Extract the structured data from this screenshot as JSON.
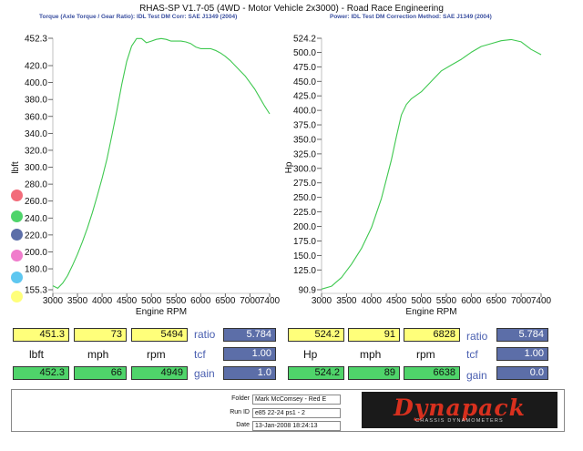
{
  "header": {
    "title": "RHAS-SP V1.7-05   (4WD - Motor Vehicle 2x3000) - Road Race Engineering",
    "left_subtitle": "Torque (Axle Torque / Gear Ratio): IDL Test DM     Corr: SAE J1349 (2004)",
    "right_subtitle": "Power: IDL Test DM     Correction Method: SAE J1349 (2004)"
  },
  "chart_data": [
    {
      "type": "line",
      "xlabel": "Engine RPM",
      "ylabel": "lbft",
      "xlim": [
        3000,
        7400
      ],
      "ylim": [
        155.3,
        452.3
      ],
      "xticks": [
        3000,
        3500,
        4000,
        4500,
        5000,
        5500,
        6000,
        6500,
        7000,
        7400
      ],
      "xtick_labels": [
        "3000",
        "3500",
        "4000",
        "4500",
        "5000",
        "5500",
        "6000",
        "6500",
        "7000",
        "7400"
      ],
      "yticks": [
        155.3,
        180,
        200,
        220,
        240,
        260,
        280,
        300,
        320,
        340,
        360,
        380,
        400,
        420,
        452.3
      ],
      "ytick_labels": [
        "155.3",
        "180.0",
        "200.0",
        "220.0",
        "240.0",
        "260.0",
        "280.0",
        "300.0",
        "320.0",
        "340.0",
        "360.0",
        "380.0",
        "400.0",
        "420.0",
        "452.3"
      ],
      "grid": false,
      "color": "#3ec84f",
      "series": [
        {
          "x": [
            3000,
            3100,
            3200,
            3300,
            3400,
            3500,
            3600,
            3700,
            3800,
            3900,
            4000,
            4100,
            4200,
            4300,
            4400,
            4500,
            4600,
            4700,
            4800,
            4900,
            5000,
            5100,
            5200,
            5300,
            5400,
            5500,
            5600,
            5700,
            5800,
            5900,
            6000,
            6100,
            6200,
            6300,
            6400,
            6500,
            6600,
            6700,
            6800,
            6900,
            7000,
            7100,
            7200,
            7300,
            7400
          ],
          "y": [
            160,
            157,
            163,
            172,
            184,
            197,
            212,
            228,
            246,
            266,
            287,
            310,
            338,
            367,
            398,
            425,
            443,
            452,
            452,
            447,
            449,
            451,
            452,
            451,
            449,
            449,
            449,
            448,
            446,
            442,
            440,
            440,
            440,
            438,
            435,
            431,
            426,
            420,
            414,
            408,
            400,
            392,
            382,
            372,
            363
          ]
        }
      ]
    },
    {
      "type": "line",
      "xlabel": "Engine RPM",
      "ylabel": "Hp",
      "xlim": [
        3000,
        7400
      ],
      "ylim": [
        90.9,
        524.2
      ],
      "xticks": [
        3000,
        3500,
        4000,
        4500,
        5000,
        5500,
        6000,
        6500,
        7000,
        7400
      ],
      "xtick_labels": [
        "3000",
        "3500",
        "4000",
        "4500",
        "5000",
        "5500",
        "6000",
        "6500",
        "7000",
        "7400"
      ],
      "yticks": [
        90.9,
        125,
        150,
        175,
        200,
        225,
        250,
        275,
        300,
        325,
        350,
        375,
        400,
        425,
        450,
        475,
        500,
        524.2
      ],
      "ytick_labels": [
        "90.9",
        "125.0",
        "150.0",
        "175.0",
        "200.0",
        "225.0",
        "250.0",
        "275.0",
        "300.0",
        "325.0",
        "350.0",
        "375.0",
        "400.0",
        "425.0",
        "450.0",
        "475.0",
        "500.0",
        "524.2"
      ],
      "grid": false,
      "color": "#3ec84f",
      "series": [
        {
          "x": [
            3000,
            3200,
            3400,
            3600,
            3800,
            4000,
            4200,
            4400,
            4500,
            4600,
            4700,
            4800,
            5000,
            5200,
            5400,
            5600,
            5800,
            6000,
            6200,
            6400,
            6600,
            6800,
            7000,
            7200,
            7400
          ],
          "y": [
            92,
            97,
            112,
            135,
            162,
            198,
            248,
            315,
            355,
            392,
            410,
            420,
            432,
            450,
            468,
            478,
            488,
            500,
            510,
            515,
            520,
            522,
            518,
            505,
            496
          ]
        }
      ]
    }
  ],
  "readout_left": {
    "top_values": [
      "451.3",
      "73",
      "5494"
    ],
    "unit_labels": [
      "lbft",
      "mph",
      "rpm"
    ],
    "bottom_values": [
      "452.3",
      "66",
      "4949"
    ],
    "factors": [
      {
        "label": "ratio",
        "value": "5.784"
      },
      {
        "label": "tcf",
        "value": "1.00"
      },
      {
        "label": "gain",
        "value": "1.0"
      }
    ]
  },
  "readout_right": {
    "top_values": [
      "524.2",
      "91",
      "6828"
    ],
    "unit_labels": [
      "Hp",
      "mph",
      "rpm"
    ],
    "bottom_values": [
      "524.2",
      "89",
      "6638"
    ],
    "factors": [
      {
        "label": "ratio",
        "value": "5.784"
      },
      {
        "label": "tcf",
        "value": "1.00"
      },
      {
        "label": "gain",
        "value": "0.0"
      }
    ]
  },
  "footer": {
    "folder_label": "Folder",
    "folder_value": "Mark McComsey - Red E",
    "runid_label": "Run ID",
    "runid_value": "e85 22-24 ps1 - 2",
    "date_label": "Date",
    "date_value": "13-Jan-2008  18:24:13"
  },
  "logo": {
    "text": "Dynapack",
    "subtext": "CHASSIS DYNAMOMETERS"
  },
  "legend_dot_colors": [
    "#f26c7a",
    "#4fd46a",
    "#5c6ea8",
    "#f07ccc",
    "#5ec7f0",
    "#ffff7a"
  ]
}
